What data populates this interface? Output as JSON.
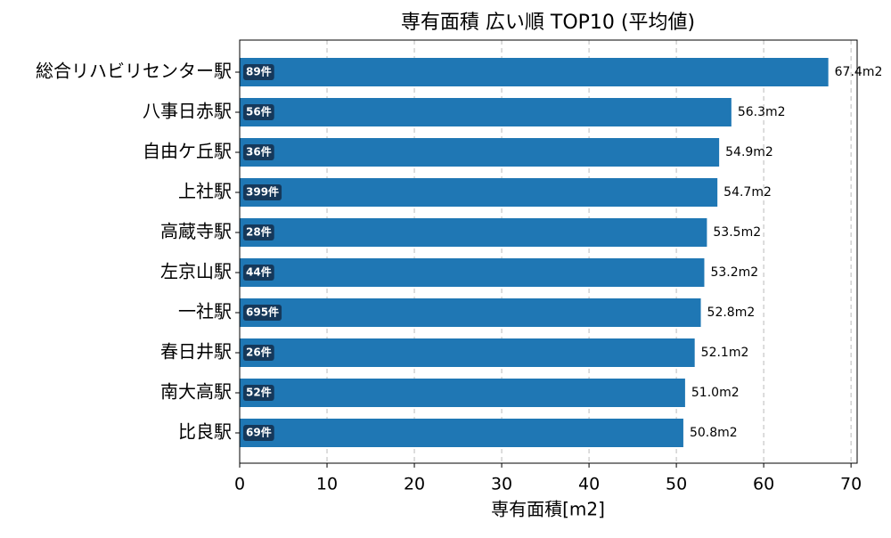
{
  "chart_data": {
    "type": "barh",
    "title": "専有面積 広い順 TOP10 (平均値)",
    "x_label": "専有面積[m2]",
    "categories": [
      "総合リハビリセンター駅",
      "八事日赤駅",
      "自由ケ丘駅",
      "上社駅",
      "高蔵寺駅",
      "左京山駅",
      "一社駅",
      "春日井駅",
      "南大高駅",
      "比良駅"
    ],
    "values": [
      67.4,
      56.3,
      54.9,
      54.7,
      53.5,
      53.2,
      52.8,
      52.1,
      51.0,
      50.8
    ],
    "value_labels": [
      "67.4m2",
      "56.3m2",
      "54.9m2",
      "54.7m2",
      "53.5m2",
      "53.2m2",
      "52.8m2",
      "52.1m2",
      "51.0m2",
      "50.8m2"
    ],
    "count_labels": [
      "89件",
      "56件",
      "36件",
      "399件",
      "28件",
      "44件",
      "695件",
      "26件",
      "52件",
      "69件"
    ],
    "color": "#1f77b4",
    "xlim": [
      0,
      70.7
    ],
    "xticks": [
      0,
      10,
      20,
      30,
      40,
      50,
      60,
      70
    ],
    "grid": true
  }
}
